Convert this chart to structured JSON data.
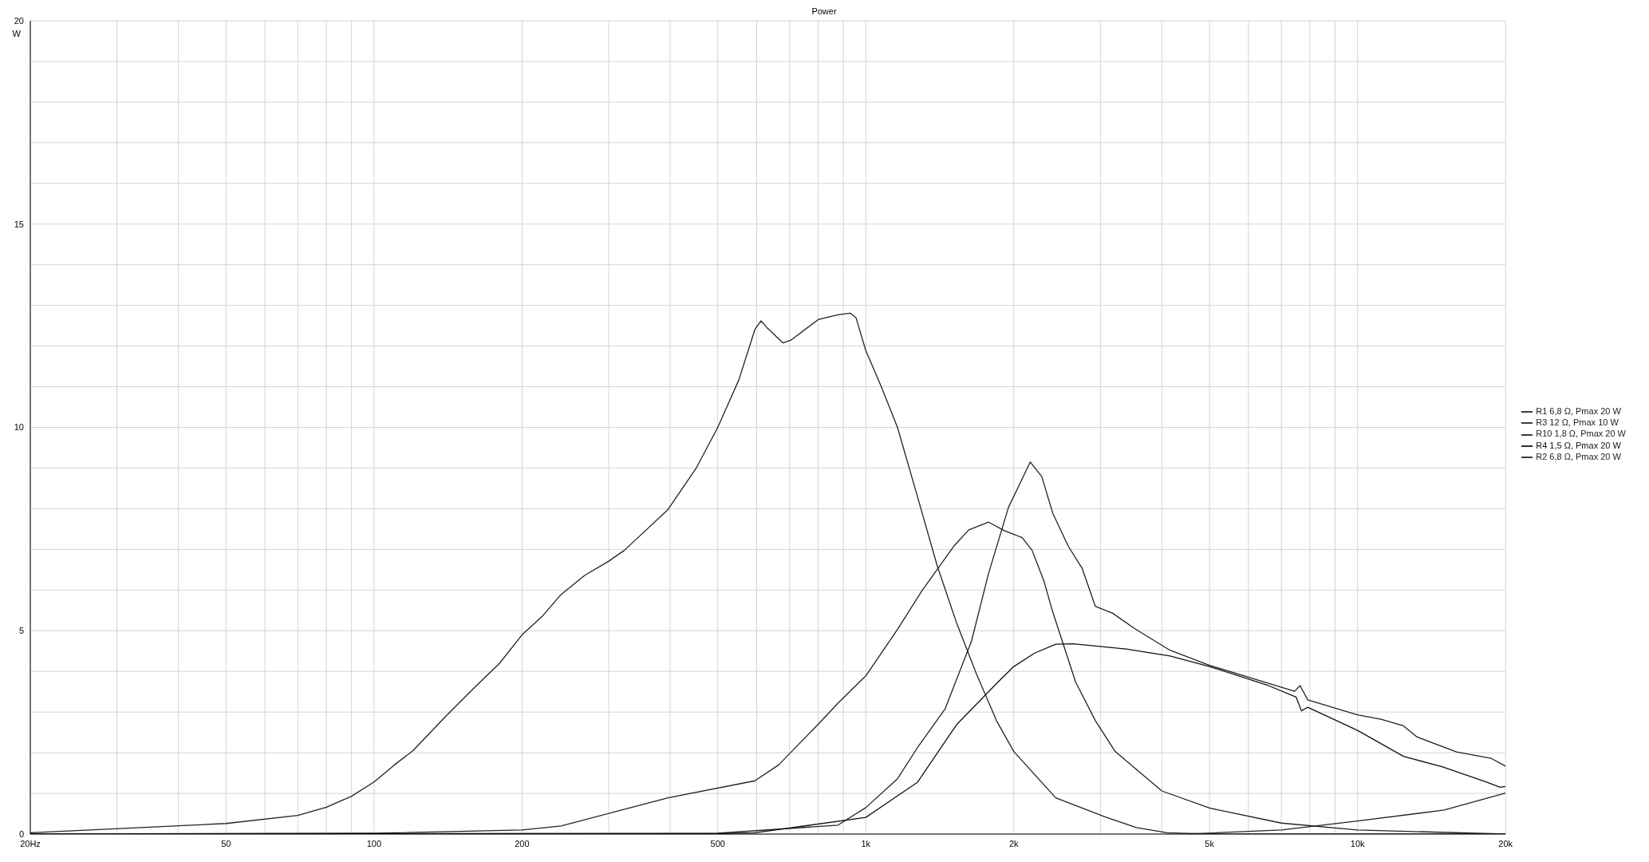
{
  "chart_data": {
    "type": "line",
    "title": "Power",
    "ylabel": "W",
    "xlim": [
      20,
      20000
    ],
    "ylim": [
      0,
      20
    ],
    "log": "x",
    "grid": true,
    "legend": "right",
    "line_style": "solid",
    "marker": "none",
    "xticks": [
      {
        "value": 20,
        "label": "20Hz"
      },
      {
        "value": 30,
        "label": null
      },
      {
        "value": 40,
        "label": null
      },
      50,
      {
        "value": 60,
        "label": null
      },
      {
        "value": 70,
        "label": null
      },
      {
        "value": 80,
        "label": null
      },
      {
        "value": 90,
        "label": null
      },
      100,
      200,
      {
        "value": 300,
        "label": null
      },
      {
        "value": 400,
        "label": null
      },
      500,
      {
        "value": 600,
        "label": null
      },
      {
        "value": 700,
        "label": null
      },
      {
        "value": 800,
        "label": null
      },
      {
        "value": 900,
        "label": null
      },
      {
        "value": 1000,
        "label": "1k"
      },
      {
        "value": 2000,
        "label": "2k"
      },
      {
        "value": 3000,
        "label": null
      },
      {
        "value": 4000,
        "label": null
      },
      {
        "value": 5000,
        "label": "5k"
      },
      {
        "value": 6000,
        "label": null
      },
      {
        "value": 7000,
        "label": null
      },
      {
        "value": 8000,
        "label": null
      },
      {
        "value": 9000,
        "label": null
      },
      {
        "value": 10000,
        "label": "10k"
      },
      {
        "value": 20000,
        "label": "20k"
      }
    ],
    "yticks": [
      0,
      {
        "value": 1,
        "label": null
      },
      {
        "value": 2,
        "label": null
      },
      {
        "value": 3,
        "label": null
      },
      {
        "value": 4,
        "label": null
      },
      5,
      {
        "value": 6,
        "label": null
      },
      {
        "value": 7,
        "label": null
      },
      {
        "value": 8,
        "label": null
      },
      {
        "value": 9,
        "label": null
      },
      10,
      {
        "value": 11,
        "label": null
      },
      {
        "value": 12,
        "label": null
      },
      {
        "value": 13,
        "label": null
      },
      {
        "value": 14,
        "label": null
      },
      15,
      {
        "value": 16,
        "label": null
      },
      {
        "value": 17,
        "label": null
      },
      {
        "value": 18,
        "label": null
      },
      {
        "value": 19,
        "label": null
      },
      20
    ],
    "series": [
      {
        "name": "R1 6,8 Ω, Pmax 20 W",
        "color": "#222222",
        "x": [
          20,
          50,
          70,
          80,
          90,
          100,
          110,
          120,
          140,
          160,
          180,
          200,
          220,
          240,
          268,
          300,
          323,
          396,
          451,
          500,
          552,
          595,
          612,
          629,
          678,
          703,
          800,
          878,
          929,
          955,
          1000,
          1077,
          1160,
          1273,
          1397,
          1532,
          1680,
          1844,
          2000,
          2434,
          3055,
          3550,
          4100,
          5000,
          20000
        ],
        "values": [
          0.03,
          0.26,
          0.46,
          0.66,
          0.93,
          1.28,
          1.7,
          2.05,
          2.9,
          3.6,
          4.2,
          4.9,
          5.36,
          5.89,
          6.36,
          6.71,
          6.98,
          7.98,
          8.98,
          10.0,
          11.17,
          12.41,
          12.62,
          12.46,
          12.08,
          12.14,
          12.65,
          12.77,
          12.81,
          12.7,
          11.89,
          10.98,
          10.0,
          8.31,
          6.6,
          5.17,
          3.93,
          2.79,
          2.03,
          0.89,
          0.43,
          0.16,
          0.03,
          0,
          0
        ]
      },
      {
        "name": "R3 12 Ω, Pmax 10 W",
        "color": "#222222",
        "x": [
          20,
          100,
          200,
          240,
          396,
          595,
          665,
          800,
          878,
          1000,
          1160,
          1300,
          1510,
          1620,
          1777,
          1914,
          2080,
          2178,
          2303,
          2400,
          2671,
          2930,
          3215,
          4000,
          5000,
          7000,
          10000,
          20000
        ],
        "values": [
          0,
          0.02,
          0.1,
          0.2,
          0.89,
          1.31,
          1.7,
          2.7,
          3.22,
          3.89,
          5.03,
          5.98,
          7.08,
          7.48,
          7.67,
          7.46,
          7.29,
          6.98,
          6.22,
          5.46,
          3.74,
          2.79,
          2.03,
          1.06,
          0.64,
          0.27,
          0.1,
          0
        ]
      },
      {
        "name": "R10 1,8 Ω, Pmax 20 W",
        "color": "#222222",
        "x": [
          20,
          500,
          878,
          1000,
          1160,
          1273,
          1450,
          1640,
          1777,
          1950,
          2160,
          2280,
          2400,
          2580,
          2753,
          2930,
          3177,
          3526,
          4156,
          5000,
          6530,
          7450,
          7640,
          7920,
          10000,
          11200,
          12400,
          13200,
          15900,
          18700,
          20000
        ],
        "values": [
          0,
          0.02,
          0.22,
          0.65,
          1.36,
          2.12,
          3.08,
          4.74,
          6.41,
          8.03,
          9.15,
          8.79,
          7.89,
          7.08,
          6.54,
          5.6,
          5.43,
          5.05,
          4.52,
          4.15,
          3.72,
          3.51,
          3.65,
          3.3,
          2.93,
          2.82,
          2.66,
          2.39,
          2.02,
          1.86,
          1.67
        ]
      },
      {
        "name": "R4 1,5 Ω, Pmax 20 W",
        "color": "#111111",
        "x": [
          20,
          500,
          595,
          1000,
          1273,
          1532,
          1844,
          2000,
          2205,
          2434,
          2643,
          3380,
          4156,
          5000,
          6530,
          7500,
          7690,
          7920,
          10000,
          12400,
          14900,
          18300,
          19500,
          20000
        ],
        "values": [
          0,
          0.01,
          0.03,
          0.41,
          1.27,
          2.7,
          3.7,
          4.12,
          4.45,
          4.67,
          4.68,
          4.55,
          4.38,
          4.12,
          3.67,
          3.37,
          3.03,
          3.12,
          2.55,
          1.91,
          1.65,
          1.28,
          1.15,
          1.17
        ]
      },
      {
        "name": "R2 6,8 Ω, Pmax 20 W",
        "color": "#222222",
        "x": [
          4500,
          7000,
          10000,
          15000,
          20000
        ],
        "values": [
          0,
          0.1,
          0.32,
          0.59,
          1.01
        ]
      }
    ]
  }
}
